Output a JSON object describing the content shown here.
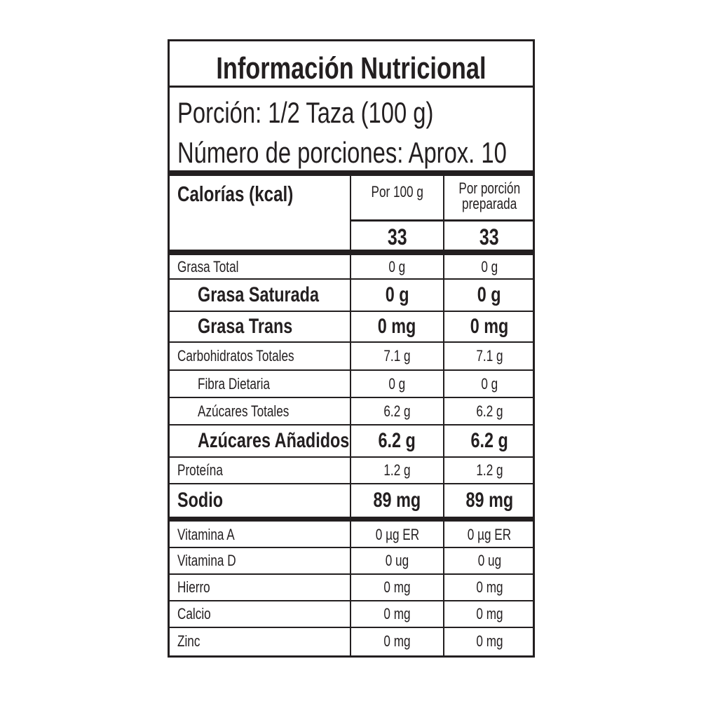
{
  "title": "Información Nutricional",
  "serving": {
    "size": "Porción: 1/2 Taza (100 g)",
    "servings_per_container": "Número de porciones: Aprox. 10"
  },
  "calories": {
    "label": "Calorías (kcal)",
    "col1_header": "Por 100 g",
    "col2_header_line1": "Por porción",
    "col2_header_line2": "preparada",
    "col1_value": "33",
    "col2_value": "33"
  },
  "nutrients": [
    {
      "label": "Grasa Total",
      "per100": "0 g",
      "perServing": "0 g",
      "style": "normal"
    },
    {
      "label": "Grasa Saturada",
      "per100": "0 g",
      "perServing": "0 g",
      "style": "bold-indent"
    },
    {
      "label": "Grasa Trans",
      "per100": "0 mg",
      "perServing": "0 mg",
      "style": "bold-indent"
    },
    {
      "label": "Carbohidratos Totales",
      "per100": "7.1 g",
      "perServing": "7.1 g",
      "style": "normal"
    },
    {
      "label": "Fibra Dietaria",
      "per100": "0 g",
      "perServing": "0 g",
      "style": "indent"
    },
    {
      "label": "Azúcares Totales",
      "per100": "6.2 g",
      "perServing": "6.2 g",
      "style": "indent"
    },
    {
      "label": "Azúcares Añadidos",
      "per100": "6.2 g",
      "perServing": "6.2 g",
      "style": "bold-indent"
    },
    {
      "label": "Proteína",
      "per100": "1.2 g",
      "perServing": "1.2 g",
      "style": "normal"
    },
    {
      "label": "Sodio",
      "per100": "89 mg",
      "perServing": "89 mg",
      "style": "bold"
    }
  ],
  "micronutrients": [
    {
      "label": "Vitamina A",
      "per100": "0 µg ER",
      "perServing": "0 µg ER"
    },
    {
      "label": "Vitamina D",
      "per100": "0 ug",
      "perServing": "0 ug"
    },
    {
      "label": "Hierro",
      "per100": "0 mg",
      "perServing": "0 mg"
    },
    {
      "label": "Calcio",
      "per100": "0 mg",
      "perServing": "0 mg"
    },
    {
      "label": "Zinc",
      "per100": "0 mg",
      "perServing": "0 mg"
    }
  ]
}
